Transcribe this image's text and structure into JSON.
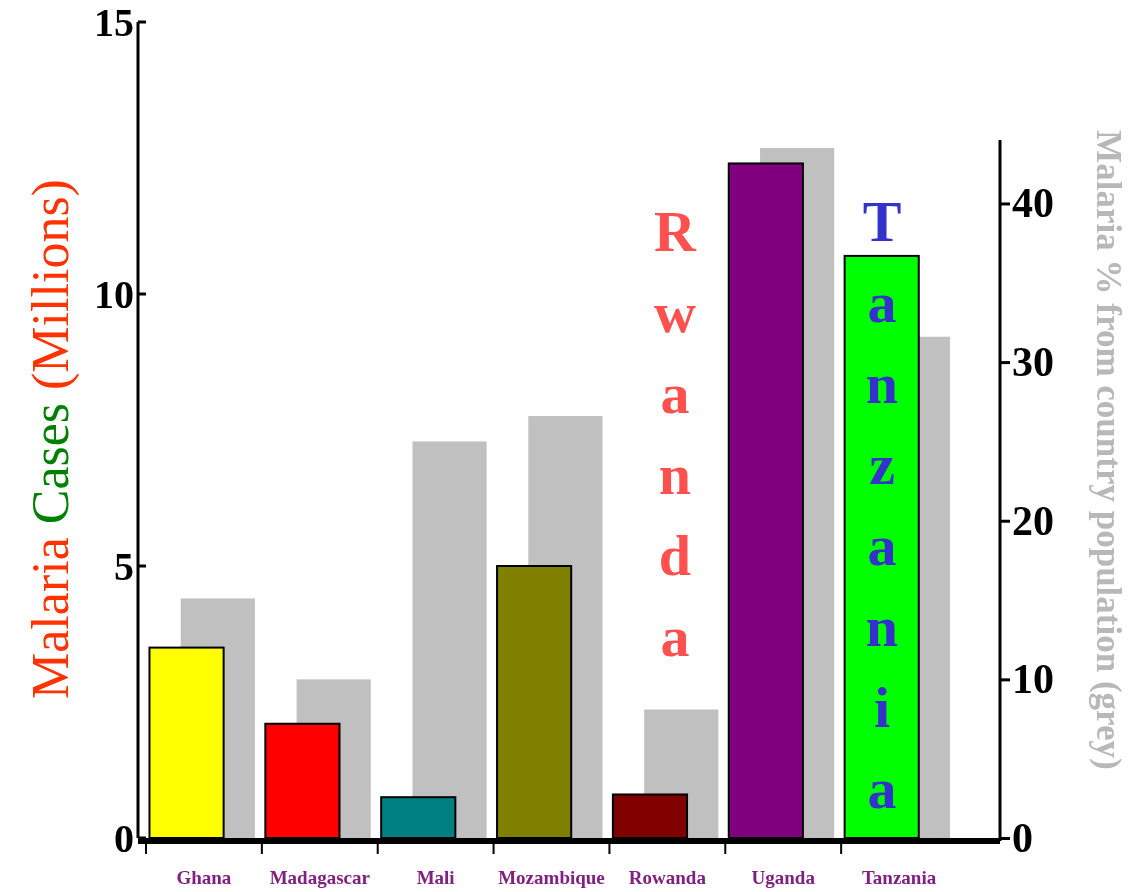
{
  "chart_data": {
    "type": "bar",
    "ylabel": "Malaria Cases (Millions)",
    "y2label": "Malaria % from country population (grey)",
    "categories": [
      "Ghana",
      "Madagascar",
      "Mali",
      "Mozambique",
      "Rowanda",
      "Uganda",
      "Tanzania"
    ],
    "series": [
      {
        "axis": "y2",
        "color": "#c0c0c0",
        "values": [
          15.1,
          10.0,
          25.0,
          26.6,
          8.1,
          43.5,
          31.6
        ]
      },
      {
        "colors": [
          "#ffff00",
          "#ff0000",
          "#008080",
          "#808000",
          "#800000",
          "#800080",
          "#00ff00"
        ],
        "values": [
          3.5,
          2.1,
          0.75,
          5.0,
          0.8,
          12.4,
          10.7
        ]
      }
    ],
    "ylim": [
      0,
      15
    ],
    "yticks": [
      0,
      5,
      10,
      15
    ],
    "y2lim": [
      0,
      44
    ],
    "y2ticks": [
      0,
      10,
      20,
      30,
      40
    ],
    "annotations": [
      "Rwanda",
      "Tanzania"
    ]
  }
}
